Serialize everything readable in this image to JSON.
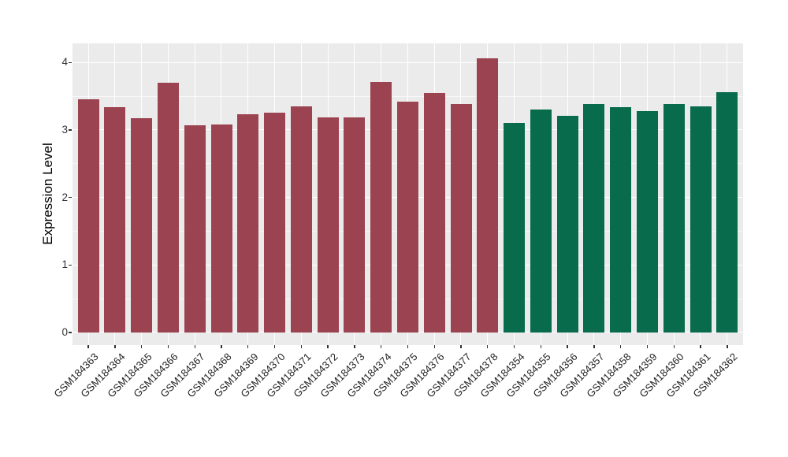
{
  "chart_data": {
    "type": "bar",
    "title": "",
    "xlabel": "",
    "ylabel": "Expression Level",
    "ylim": [
      0,
      4.28
    ],
    "yticks": [
      0,
      1,
      2,
      3,
      4
    ],
    "yminorticks": [
      0.5,
      1.5,
      2.5,
      3.5
    ],
    "grid": "major+minor horizontal white, major vertical white per category",
    "legend_position": "none",
    "categories": [
      "GSM184363",
      "GSM184364",
      "GSM184365",
      "GSM184366",
      "GSM184367",
      "GSM184368",
      "GSM184369",
      "GSM184370",
      "GSM184371",
      "GSM184372",
      "GSM184373",
      "GSM184374",
      "GSM184375",
      "GSM184376",
      "GSM184377",
      "GSM184378",
      "GSM184354",
      "GSM184355",
      "GSM184356",
      "GSM184357",
      "GSM184358",
      "GSM184359",
      "GSM184360",
      "GSM184361",
      "GSM184362"
    ],
    "values": [
      3.45,
      3.34,
      3.17,
      3.7,
      3.07,
      3.08,
      3.23,
      3.25,
      3.35,
      3.18,
      3.18,
      3.71,
      3.42,
      3.55,
      3.38,
      4.06,
      3.1,
      3.3,
      3.21,
      3.38,
      3.34,
      3.28,
      3.38,
      3.35,
      3.56
    ],
    "groups": [
      "maroon",
      "maroon",
      "maroon",
      "maroon",
      "maroon",
      "maroon",
      "maroon",
      "maroon",
      "maroon",
      "maroon",
      "maroon",
      "maroon",
      "maroon",
      "maroon",
      "maroon",
      "maroon",
      "green",
      "green",
      "green",
      "green",
      "green",
      "green",
      "green",
      "green",
      "green"
    ],
    "group_colors": {
      "maroon": "#9C4351",
      "green": "#076B4C"
    },
    "panel_background": "#EBEBEB",
    "gridline_color": "#FFFFFF",
    "axis_text_color": "#333333",
    "tick_mark_color": "#333333"
  }
}
